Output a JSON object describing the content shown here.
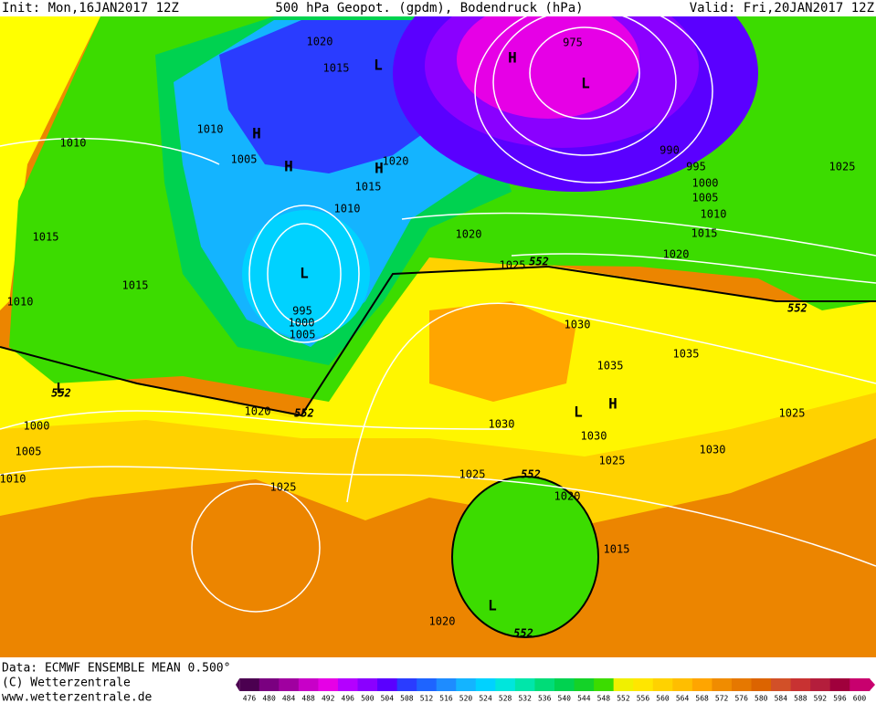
{
  "header": {
    "init": "Init: Mon,16JAN2017 12Z",
    "title": "500 hPa Geopot. (gpdm), Bodendruck (hPa)",
    "valid": "Valid: Fri,20JAN2017 12Z"
  },
  "footer": {
    "data": "Data: ECMWF ENSEMBLE MEAN 0.500°",
    "copyright": "(C) Wetterzentrale",
    "url": "www.wetterzentrale.de"
  },
  "colorbar": {
    "levels": [
      476,
      480,
      484,
      488,
      492,
      496,
      500,
      504,
      508,
      512,
      516,
      520,
      524,
      528,
      532,
      536,
      540,
      544,
      548,
      552,
      556,
      560,
      564,
      568,
      572,
      576,
      580,
      584,
      588,
      592,
      596,
      600
    ],
    "colors": [
      "#4b0050",
      "#7a0080",
      "#a000a0",
      "#c800c8",
      "#e600e6",
      "#b400ff",
      "#8a00ff",
      "#5a00ff",
      "#2a3cff",
      "#1e64ff",
      "#1e8cff",
      "#14b4ff",
      "#00d2ff",
      "#00e6dc",
      "#00e6aa",
      "#00dc78",
      "#00d250",
      "#14d228",
      "#3cdc00",
      "#f0f000",
      "#ffe600",
      "#ffd200",
      "#ffbe00",
      "#ffa500",
      "#f08c00",
      "#e67800",
      "#dc6400",
      "#d25028",
      "#c83232",
      "#b41e3c",
      "#a0003c",
      "#c8006e"
    ]
  },
  "isobar_labels": [
    "1020",
    "1015",
    "1010",
    "1005",
    "1020",
    "1015",
    "1010",
    "1010",
    "1015",
    "1015",
    "1010",
    "995",
    "1000",
    "1005",
    "1000",
    "1005",
    "1010",
    "1020",
    "1025",
    "1020",
    "1025",
    "1030",
    "1035",
    "1035",
    "1030",
    "1030",
    "1025",
    "1030",
    "1025",
    "1025",
    "1020",
    "1015",
    "1020",
    "975",
    "990",
    "995",
    "1000",
    "1005",
    "1010",
    "1015",
    "1020",
    "1025"
  ],
  "pressure_centers": [
    "H",
    "L",
    "L",
    "H",
    "H",
    "H",
    "L",
    "L",
    "L",
    "H",
    "L"
  ],
  "geopotential_labels": [
    "552",
    "552",
    "552",
    "552",
    "552",
    "552"
  ]
}
